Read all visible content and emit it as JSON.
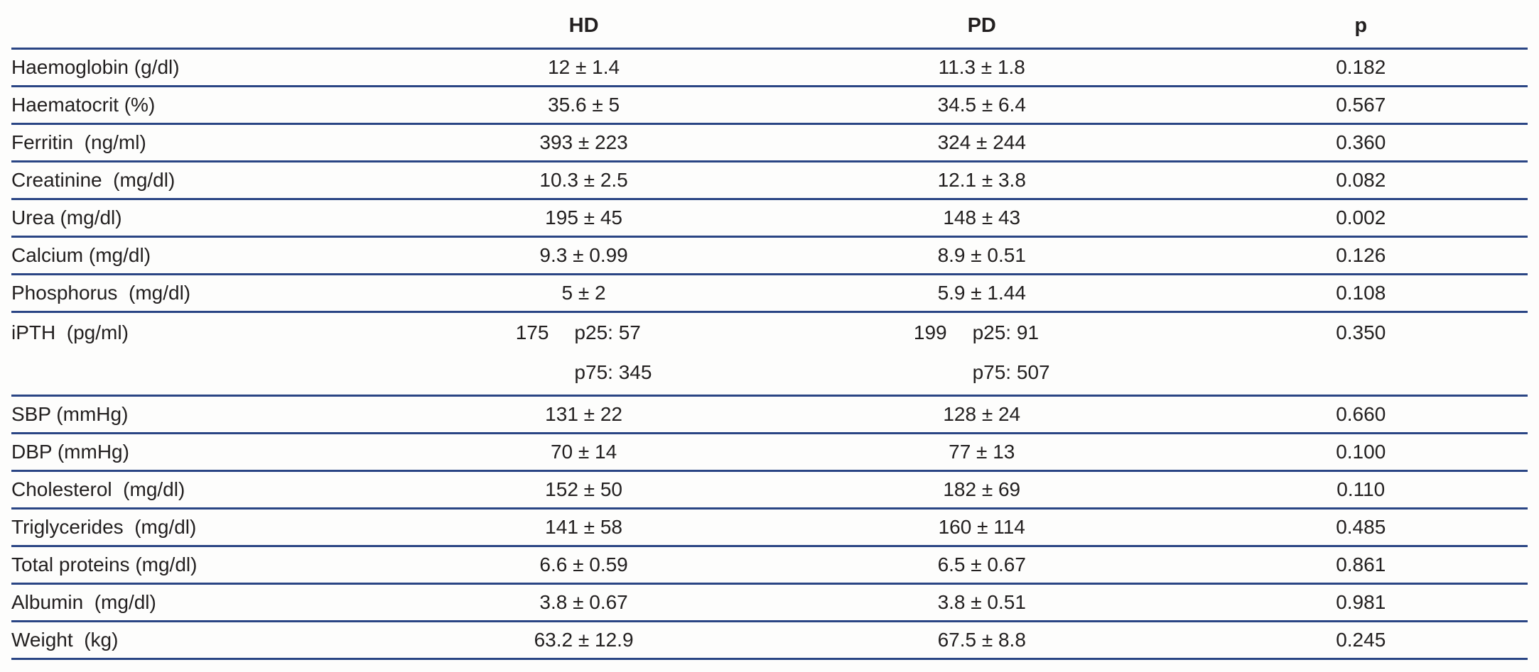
{
  "page": {
    "rule_color": "#2a4584",
    "text_color": "#232020",
    "background_color": "#fdfdfc"
  },
  "table": {
    "header": {
      "label": "",
      "hd": "HD",
      "pd": "PD",
      "p": "p"
    },
    "rows": [
      {
        "label": "Haemoglobin (g/dl)",
        "hd": "12 ± 1.4",
        "pd": "11.3 ± 1.8",
        "p": "0.182"
      },
      {
        "label": "Haematocrit (%)",
        "hd": "35.6 ± 5",
        "pd": "34.5 ± 6.4",
        "p": "0.567"
      },
      {
        "label": "Ferritin  (ng/ml)",
        "hd": "393 ± 223",
        "pd": "324 ± 244",
        "p": "0.360"
      },
      {
        "label": "Creatinine  (mg/dl)",
        "hd": "10.3 ± 2.5",
        "pd": "12.1 ± 3.8",
        "p": "0.082"
      },
      {
        "label": "Urea (mg/dl)",
        "hd": "195 ± 45",
        "pd": "148 ± 43",
        "p": "0.002"
      },
      {
        "label": "Calcium (mg/dl)",
        "hd": "9.3 ± 0.99",
        "pd": "8.9 ± 0.51",
        "p": "0.126"
      },
      {
        "label": "Phosphorus  (mg/dl)",
        "hd": "5 ± 2",
        "pd": "5.9 ± 1.44",
        "p": "0.108"
      },
      {
        "label": "iPTH  (pg/ml)",
        "two_line": true,
        "hd_main": "175",
        "hd_p25": "p25: 57",
        "hd_p75": "p75: 345",
        "pd_main": "199",
        "pd_p25": "p25: 91",
        "pd_p75": "p75: 507",
        "p": "0.350"
      },
      {
        "label": "SBP (mmHg)",
        "hd": "131 ± 22",
        "pd": "128 ± 24",
        "p": "0.660"
      },
      {
        "label": "DBP (mmHg)",
        "hd": "70 ± 14",
        "pd": "77 ± 13",
        "p": "0.100"
      },
      {
        "label": "Cholesterol  (mg/dl)",
        "hd": "152 ± 50",
        "pd": "182 ± 69",
        "p": "0.110"
      },
      {
        "label": "Triglycerides  (mg/dl)",
        "hd": "141 ± 58",
        "pd": "160 ± 114",
        "p": "0.485"
      },
      {
        "label": "Total proteins (mg/dl)",
        "hd": "6.6 ± 0.59",
        "pd": "6.5 ± 0.67",
        "p": "0.861"
      },
      {
        "label": "Albumin  (mg/dl)",
        "hd": "3.8 ± 0.67",
        "pd": "3.8 ± 0.51",
        "p": "0.981"
      },
      {
        "label": "Weight  (kg)",
        "hd": "63.2 ± 12.9",
        "pd": "67.5 ± 8.8",
        "p": "0.245"
      }
    ]
  }
}
